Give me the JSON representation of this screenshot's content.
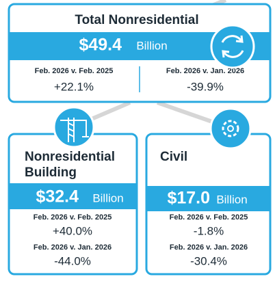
{
  "total": {
    "title": "Total Nonresidential",
    "amount": "$49.4",
    "unit": "Billion",
    "comparisons": [
      {
        "label": "Feb. 2026 v. Feb. 2025",
        "change": "+22.1%"
      },
      {
        "label": "Feb. 2026 v. Jan. 2026",
        "change": "-39.9%"
      }
    ]
  },
  "segments": [
    {
      "title_lines": [
        "Nonresidential",
        "Building"
      ],
      "amount": "$32.4",
      "unit": "Billion",
      "comparisons": [
        {
          "label": "Feb. 2026 v. Feb. 2025",
          "change": "+40.0%"
        },
        {
          "label": "Feb. 2026 v. Jan. 2026",
          "change": "-44.0%"
        }
      ]
    },
    {
      "title_lines": [
        "Civil"
      ],
      "amount": "$17.0",
      "unit": "Billion",
      "comparisons": [
        {
          "label": "Feb. 2026 v. Feb. 2025",
          "change": "-1.8%"
        },
        {
          "label": "Feb. 2026 v. Jan. 2026",
          "change": "-30.4%"
        }
      ]
    }
  ]
}
